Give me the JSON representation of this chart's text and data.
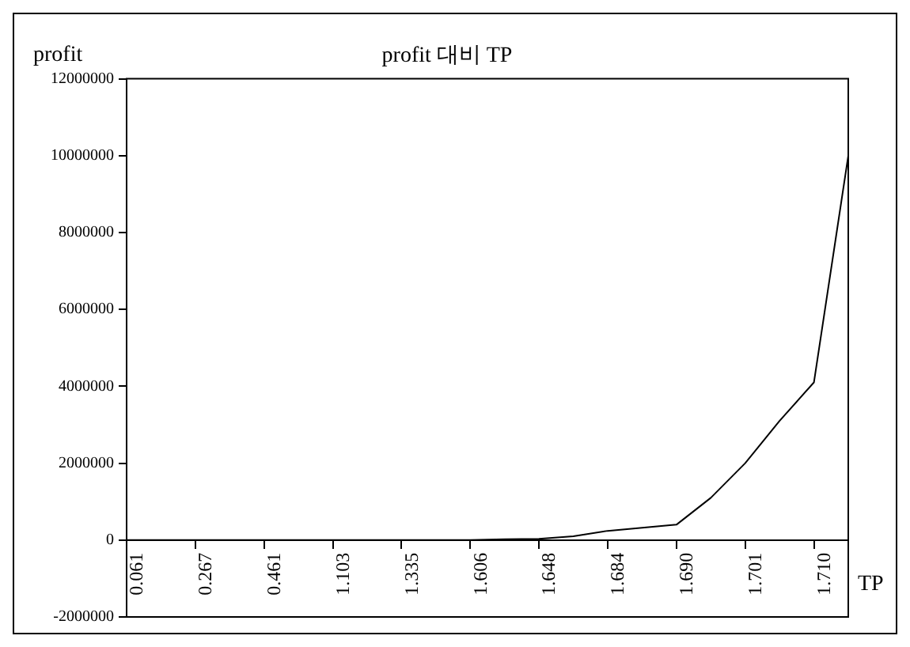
{
  "chart_data": {
    "type": "line",
    "title": "profit 대비 TP",
    "ylabel": "profit",
    "xlabel": "TP",
    "categories": [
      "0.061",
      null,
      "0.267",
      null,
      "0.461",
      null,
      "1.103",
      null,
      "1.335",
      null,
      "1.606",
      null,
      "1.648",
      null,
      "1.684",
      null,
      "1.690",
      null,
      "1.701",
      null,
      "1.710",
      null
    ],
    "series": [
      {
        "color": "#000000",
        "values": [
          0,
          0,
          0,
          0,
          0,
          0,
          0,
          0,
          0,
          0,
          0,
          20000,
          30000,
          100000,
          240000,
          320000,
          400000,
          1100000,
          2000000,
          3100000,
          4100000,
          10000000
        ]
      }
    ],
    "ylim": [
      -2000000,
      12000000
    ],
    "yticks": [
      -2000000,
      0,
      2000000,
      4000000,
      6000000,
      8000000,
      10000000,
      12000000
    ],
    "grid": false,
    "legend": false,
    "marker": "none",
    "line_style": "solid"
  }
}
